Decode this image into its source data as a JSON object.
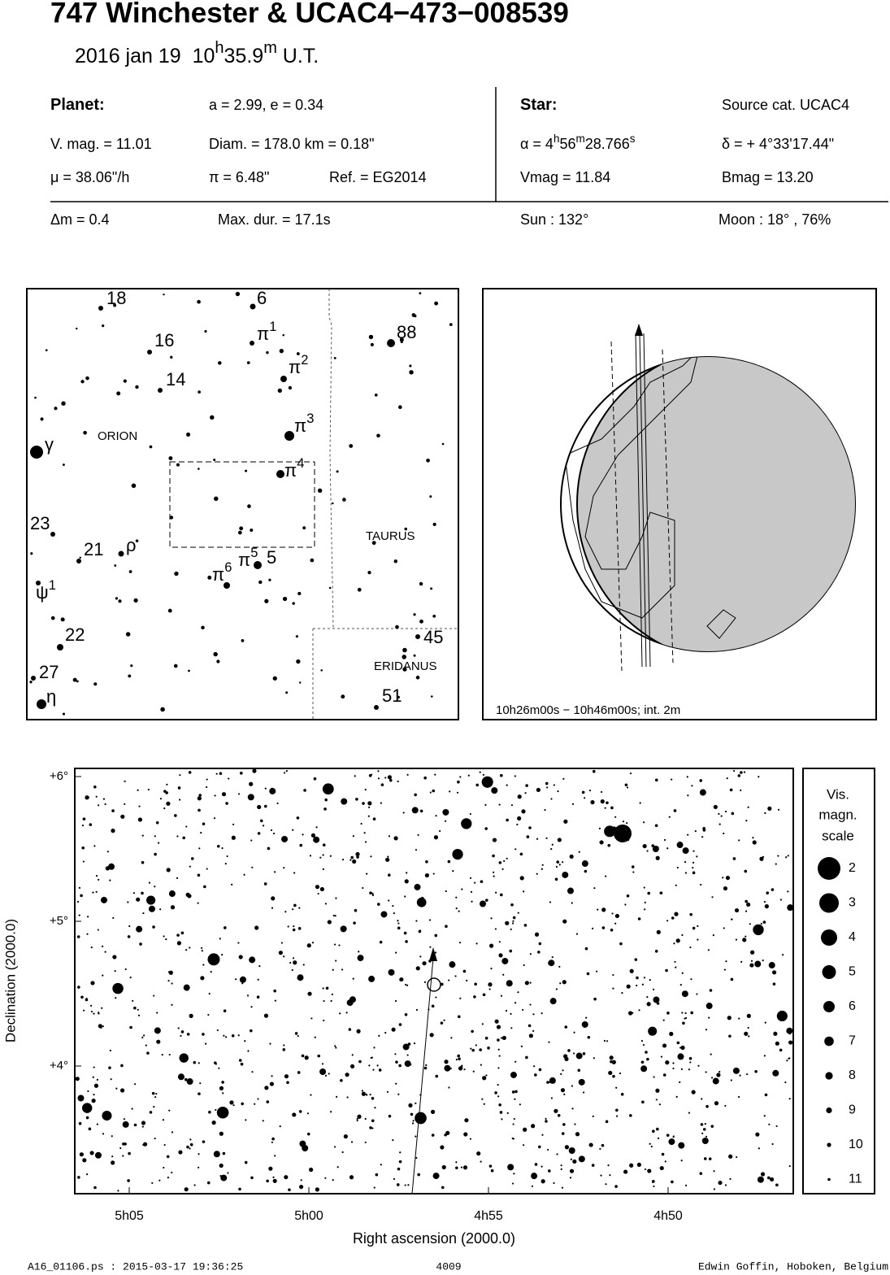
{
  "header": {
    "title": "747 Winchester  &  UCAC4−473−008539",
    "date": "2016 jan 19",
    "time": [
      "10",
      "h",
      "35.9",
      "m",
      " U.T."
    ]
  },
  "info": {
    "rows": [
      [
        [
          "Planet:"
        ],
        [
          "a = 2.99, e = 0.34"
        ],
        [
          "Star:"
        ],
        [
          "Source cat.  UCAC4"
        ]
      ],
      [
        [
          "V. mag. = 11.01"
        ],
        [
          "Diam. = 178.0 km = 0.18\""
        ],
        [
          "α =  4",
          "h",
          "56",
          "m",
          "28.766",
          "s"
        ],
        [
          "δ = + 4°33'17.44\""
        ]
      ],
      [
        [
          "μ =  38.06\"/h"
        ],
        [
          "π =  6.48\""
        ],
        [
          "Ref. = EG2014"
        ],
        [
          "Vmag = 11.84"
        ],
        [
          "Bmag = 13.20"
        ]
      ],
      [
        [
          "Δm = 0.4"
        ],
        [
          "Max. dur. = 17.1s"
        ],
        [
          "Sun : 132°"
        ],
        [
          "Moon :  18° , 76%"
        ]
      ]
    ]
  },
  "finder": {
    "labels": [
      [
        "18"
      ],
      [
        "6"
      ],
      [
        "16"
      ],
      [
        "14"
      ],
      [
        "π",
        "1"
      ],
      [
        "π",
        "2"
      ],
      [
        "π",
        "3"
      ],
      [
        "π",
        "4"
      ],
      [
        "88"
      ],
      [
        "γ"
      ],
      [
        "23"
      ],
      [
        "21"
      ],
      [
        "ρ"
      ],
      [
        "ψ",
        "1"
      ],
      [
        "22"
      ],
      [
        "27"
      ],
      [
        "η"
      ],
      [
        "π",
        "5"
      ],
      [
        "5"
      ],
      [
        "π",
        "6"
      ],
      [
        "45"
      ],
      [
        "51"
      ]
    ],
    "constellations": [
      "ORION",
      "TAURUS",
      "ERIDANUS"
    ]
  },
  "globe": {
    "caption": "10h26m00s − 10h46m00s; int.  2m"
  },
  "sky": {
    "yticks": [
      "+6°",
      "+5°",
      "+4°"
    ],
    "xticks": [
      "5h05",
      "5h00",
      "4h55",
      "4h50"
    ],
    "xlabel": "Right ascension (2000.0)",
    "ylabel": "Declination (2000.0)"
  },
  "legend": {
    "title": [
      "Vis.",
      "magn.",
      "scale"
    ],
    "items": [
      "2",
      "3",
      "4",
      "5",
      "6",
      "7",
      "8",
      "9",
      "10",
      "11"
    ]
  },
  "footer": {
    "left": "A16_01106.ps : 2015-03-17 19:36:25",
    "center": "4009",
    "right": "Edwin Goffin, Hoboken, Belgium"
  }
}
